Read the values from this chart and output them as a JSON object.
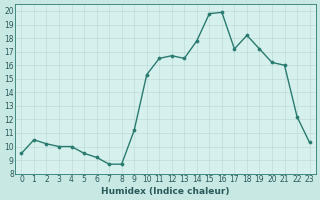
{
  "x": [
    0,
    1,
    2,
    3,
    4,
    5,
    6,
    7,
    8,
    9,
    10,
    11,
    12,
    13,
    14,
    15,
    16,
    17,
    18,
    19,
    20,
    21,
    22,
    23
  ],
  "y": [
    9.5,
    10.5,
    10.2,
    10.0,
    10.0,
    9.5,
    9.2,
    8.7,
    8.7,
    11.2,
    15.3,
    16.5,
    16.7,
    16.5,
    17.8,
    19.8,
    19.9,
    17.2,
    18.2,
    17.2,
    16.2,
    16.0,
    12.2,
    10.3
  ],
  "line_color": "#2a7b6f",
  "marker": "o",
  "markersize": 2.2,
  "linewidth": 1.0,
  "bg_color": "#c8e8e4",
  "plot_bg_color": "#d6f0ee",
  "grid_color": "#b8d8d4",
  "xlabel": "Humidex (Indice chaleur)",
  "xlim": [
    -0.5,
    23.5
  ],
  "ylim": [
    8,
    20.5
  ],
  "yticks": [
    8,
    9,
    10,
    11,
    12,
    13,
    14,
    15,
    16,
    17,
    18,
    19,
    20
  ],
  "xticks": [
    0,
    1,
    2,
    3,
    4,
    5,
    6,
    7,
    8,
    9,
    10,
    11,
    12,
    13,
    14,
    15,
    16,
    17,
    18,
    19,
    20,
    21,
    22,
    23
  ],
  "tick_fontsize": 5.5,
  "xlabel_fontsize": 6.5,
  "tick_color": "#2a5a5a",
  "xlabel_color": "#2a5a5a",
  "spine_color": "#2a7b6f"
}
